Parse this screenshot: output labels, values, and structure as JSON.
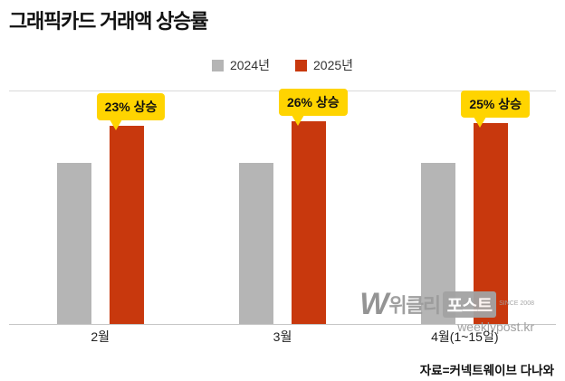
{
  "title": "그래픽카드 거래액 상승률",
  "source": "자료=커넥트웨이브 다나와",
  "watermark": {
    "mark": "W",
    "brand_left": "위클리",
    "brand_right": "포스트",
    "since": "SINCE 2008",
    "url": "weeklypost.kr"
  },
  "chart_data": {
    "type": "bar",
    "title": "그래픽카드 거래액 상승률",
    "categories": [
      "2월",
      "3월",
      "4월(1~15일)"
    ],
    "series": [
      {
        "name": "2024년",
        "color": "#b5b5b5",
        "values": [
          100,
          100,
          100
        ]
      },
      {
        "name": "2025년",
        "color": "#c8380d",
        "values": [
          123,
          126,
          125
        ]
      }
    ],
    "annotations": [
      "23% 상승",
      "26% 상승",
      "25% 상승"
    ],
    "annotation_bg": "#ffd400",
    "xlabel": "",
    "ylabel": "",
    "ylim": [
      0,
      144
    ],
    "grid": false,
    "legend_position": "top-center"
  }
}
